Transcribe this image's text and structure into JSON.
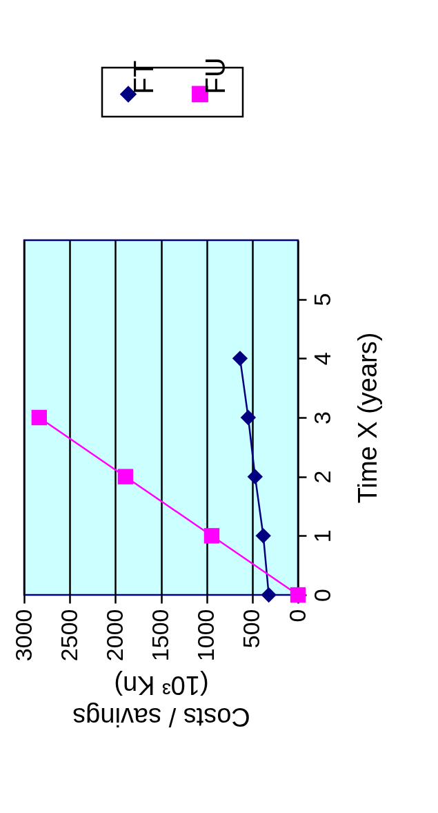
{
  "chart_data": {
    "type": "line",
    "xlabel": "Costs / savings\n(10³ Kn)",
    "ylabel": "Time X (years)",
    "series": [
      {
        "name": "FT",
        "color": "#000080",
        "marker": "diamond",
        "x": [
          320,
          380,
          470,
          545,
          635
        ],
        "values": [
          0,
          1,
          2,
          3,
          4
        ]
      },
      {
        "name": "FU",
        "color": "#ff00ff",
        "marker": "square",
        "x": [
          0,
          945,
          1890,
          2835
        ],
        "values": [
          0,
          1,
          2,
          3
        ]
      }
    ],
    "xlim": [
      3000,
      0
    ],
    "xticks": [
      0,
      500,
      1000,
      1500,
      2000,
      2500,
      3000
    ],
    "ylim": [
      0,
      6
    ],
    "yticks": [
      0,
      1,
      2,
      3,
      4,
      5
    ],
    "grid": "x",
    "legend": "top right"
  }
}
